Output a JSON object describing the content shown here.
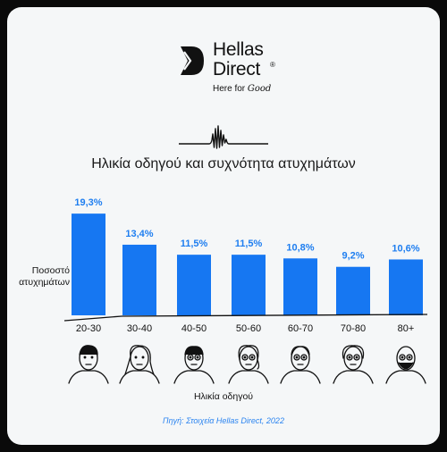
{
  "brand": {
    "line1": "Hellas",
    "line2": "Direct",
    "registered": "®",
    "tagline_prefix": "Here for",
    "tagline_script": "Good"
  },
  "chart_data": {
    "type": "bar",
    "title": "Ηλικία οδηγού και συχνότητα ατυχημάτων",
    "xlabel": "Ηλικία οδηγού",
    "ylabel_line1": "Ποσοστό",
    "ylabel_line2": "ατυχημάτων",
    "categories": [
      "20-30",
      "30-40",
      "40-50",
      "50-60",
      "60-70",
      "70-80",
      "80+"
    ],
    "values": [
      19.3,
      13.4,
      11.5,
      11.5,
      10.8,
      9.2,
      10.6
    ],
    "value_labels": [
      "19,3%",
      "13,4%",
      "11,5%",
      "11,5%",
      "10,8%",
      "9,2%",
      "10,6%"
    ],
    "ylim": [
      0,
      20
    ],
    "grid": false,
    "bar_color": "#1677f2",
    "label_color": "#1e7ef0"
  },
  "footer": {
    "source": "Πηγή: Στοιχεία Hellas Direct, 2022"
  },
  "icons": [
    "young-man-face-icon",
    "woman-face-icon",
    "man-glasses-face-icon",
    "woman-glasses-face-icon",
    "older-man-glasses-face-icon",
    "older-woman-glasses-face-icon",
    "bearded-old-man-face-icon"
  ]
}
